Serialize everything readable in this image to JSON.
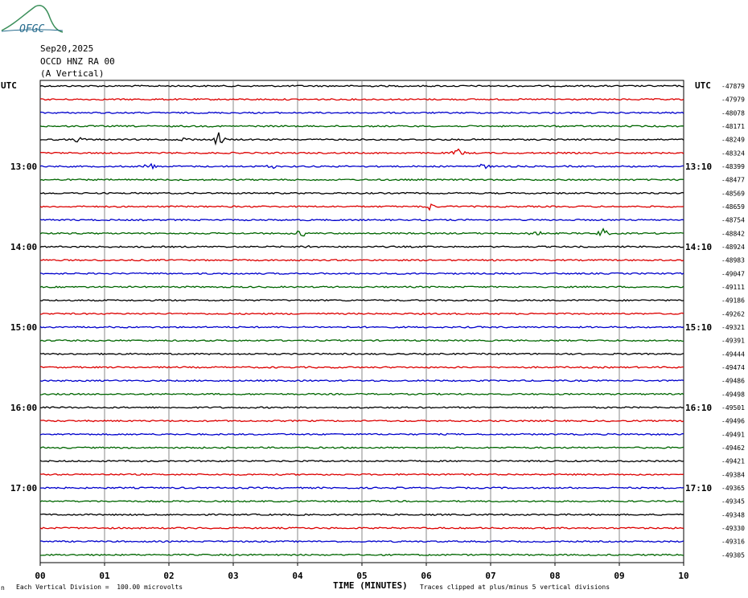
{
  "logo": {
    "text": "OFGC",
    "color": "#2a6e8f"
  },
  "header": {
    "date": "Sep20,2025",
    "station": "OCCD HNZ RA 00",
    "component": "(A Vertical)"
  },
  "utc_label_left": "UTC",
  "utc_label_right": "UTC",
  "footer": {
    "division_note": "Each Vertical Division =  100.00 microvolts",
    "clip_note": "Traces clipped at plus/minus 5 vertical divisions",
    "corner_mark": "n"
  },
  "chart_data": {
    "type": "line",
    "title": "",
    "xlabel": "TIME (MINUTES)",
    "ylabel": "",
    "x_ticks": [
      "00",
      "01",
      "02",
      "03",
      "04",
      "05",
      "06",
      "07",
      "08",
      "09",
      "10"
    ],
    "xlim": [
      0,
      10
    ],
    "grid": true,
    "trace_colors": [
      "#000000",
      "#dd0000",
      "#0000cc",
      "#006600"
    ],
    "left_time_labels": [
      {
        "row": 6,
        "label": "13:00"
      },
      {
        "row": 12,
        "label": "14:00"
      },
      {
        "row": 18,
        "label": "15:00"
      },
      {
        "row": 24,
        "label": "16:00"
      },
      {
        "row": 30,
        "label": "17:00"
      }
    ],
    "right_time_labels": [
      {
        "row": 6,
        "label": "13:10"
      },
      {
        "row": 12,
        "label": "14:10"
      },
      {
        "row": 18,
        "label": "15:10"
      },
      {
        "row": 24,
        "label": "16:10"
      },
      {
        "row": 30,
        "label": "17:10"
      }
    ],
    "offsets": [
      "-47879",
      "-47979",
      "-48078",
      "-48171",
      "-48249",
      "-48324",
      "-48399",
      "-48477",
      "-48569",
      "-48659",
      "-48754",
      "-48842",
      "-48924",
      "-48983",
      "-49047",
      "-49111",
      "-49186",
      "-49262",
      "-49321",
      "-49391",
      "-49444",
      "-49474",
      "-49486",
      "-49498",
      "-49501",
      "-49496",
      "-49491",
      "-49462",
      "-49421",
      "-49384",
      "-49365",
      "-49345",
      "-49348",
      "-49330",
      "-49316",
      "-49305"
    ],
    "events": [
      {
        "row": 4,
        "x": 0.6,
        "amp": 3
      },
      {
        "row": 4,
        "x": 2.3,
        "amp": 4
      },
      {
        "row": 4,
        "x": 2.78,
        "amp": 9
      },
      {
        "row": 5,
        "x": 6.5,
        "amp": 5
      },
      {
        "row": 6,
        "x": 1.7,
        "amp": 4
      },
      {
        "row": 6,
        "x": 3.6,
        "amp": 2
      },
      {
        "row": 6,
        "x": 6.9,
        "amp": 3
      },
      {
        "row": 9,
        "x": 6.05,
        "amp": 4
      },
      {
        "row": 11,
        "x": 4.05,
        "amp": 4
      },
      {
        "row": 11,
        "x": 7.7,
        "amp": 5
      },
      {
        "row": 11,
        "x": 8.75,
        "amp": 5
      },
      {
        "row": 12,
        "x": 4.15,
        "amp": 2
      }
    ]
  }
}
